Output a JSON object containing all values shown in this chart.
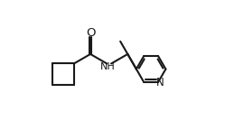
{
  "background_color": "#ffffff",
  "line_color": "#1a1a1a",
  "line_width": 1.5,
  "font_size_labels": 8.0,
  "atoms": {
    "O_label": "O",
    "NH_label": "NH",
    "N_label": "N"
  },
  "figsize": [
    2.7,
    1.34
  ],
  "dpi": 100,
  "xlim": [
    0.0,
    10.0
  ],
  "ylim": [
    1.5,
    8.5
  ]
}
